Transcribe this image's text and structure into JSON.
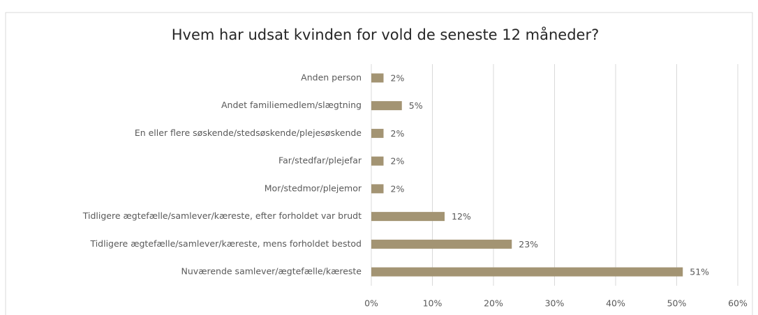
{
  "chart_data": {
    "type": "bar",
    "orientation": "horizontal",
    "title": "Hvem har udsat kvinden for vold de seneste 12 måneder?",
    "categories": [
      "Anden person",
      "Andet familiemedlem/slægtning",
      "En eller flere søskende/stedsøskende/plejesøskende",
      "Far/stedfar/plejefar",
      "Mor/stedmor/plejemor",
      "Tidligere ægtefælle/samlever/kæreste, efter forholdet var brudt",
      "Tidligere ægtefælle/samlever/kæreste, mens forholdet bestod",
      "Nuværende samlever/ægtefælle/kæreste"
    ],
    "values": [
      2,
      5,
      2,
      2,
      2,
      12,
      23,
      51
    ],
    "value_labels": [
      "2%",
      "5%",
      "2%",
      "2%",
      "2%",
      "12%",
      "23%",
      "51%"
    ],
    "color": "#a39473",
    "xlim": [
      0,
      60
    ],
    "xticks": [
      {
        "value": 0,
        "label": "0%"
      },
      {
        "value": 10,
        "label": "10%"
      },
      {
        "value": 20,
        "label": "20%"
      },
      {
        "value": 30,
        "label": "30%"
      },
      {
        "value": 40,
        "label": "40%"
      },
      {
        "value": 50,
        "label": "50%"
      },
      {
        "value": 60,
        "label": "60%"
      }
    ],
    "grid": true
  }
}
